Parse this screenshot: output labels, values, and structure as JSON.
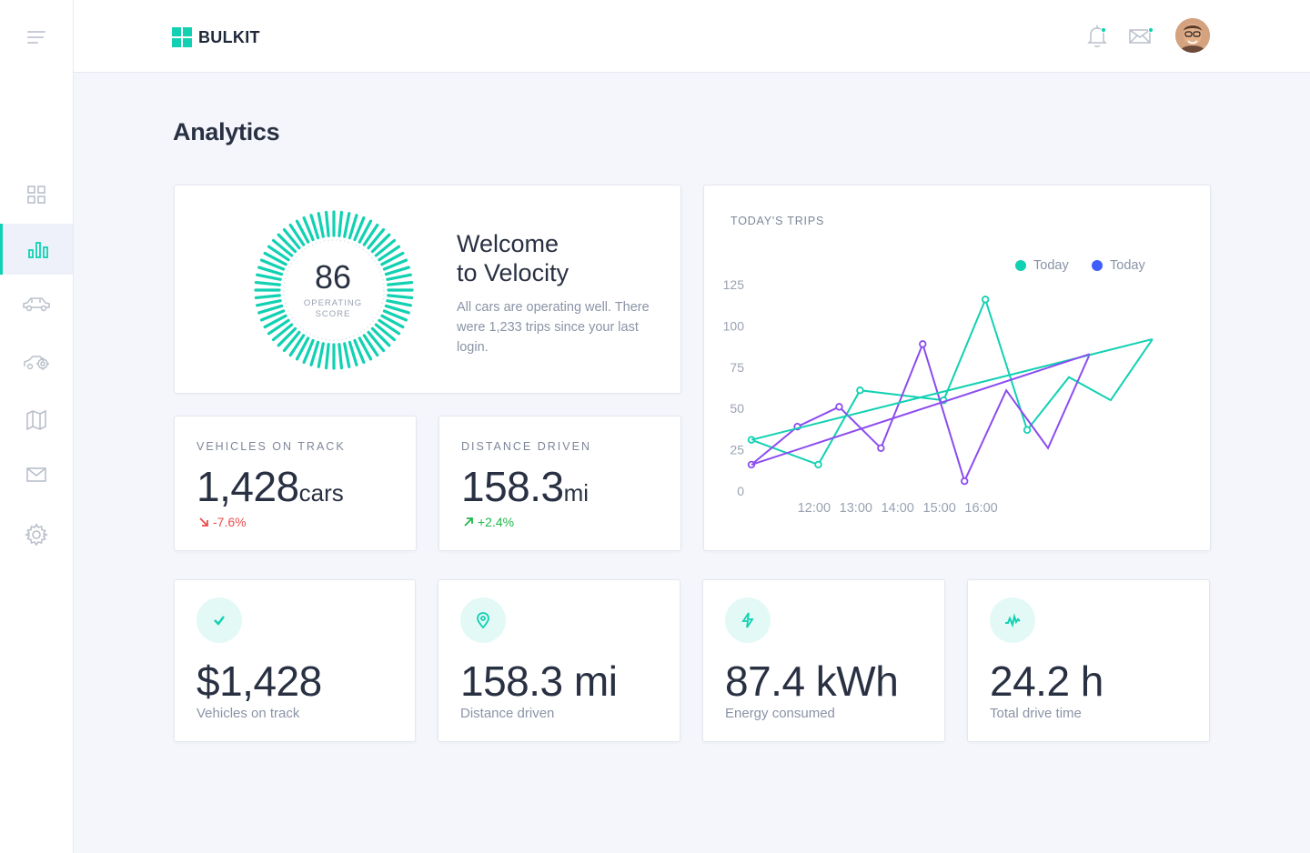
{
  "brand": {
    "name": "BULKIT",
    "accent": "#11d1b2",
    "secondary": "#7c4dff"
  },
  "sidebar": {
    "menu_icon": "hamburger-icon",
    "items": [
      {
        "id": "dashboard",
        "icon": "grid-icon",
        "active": false
      },
      {
        "id": "analytics",
        "icon": "bar-chart-icon",
        "active": true
      },
      {
        "id": "cars",
        "icon": "car-icon",
        "active": false
      },
      {
        "id": "service",
        "icon": "car-service-icon",
        "active": false
      },
      {
        "id": "map",
        "icon": "map-icon",
        "active": false
      },
      {
        "id": "messages",
        "icon": "mail-icon",
        "active": false
      },
      {
        "id": "settings",
        "icon": "gear-icon",
        "active": false
      }
    ]
  },
  "header": {
    "notifications_icon": "bell-icon",
    "messages_icon": "envelope-icon",
    "avatar": "user-avatar"
  },
  "page": {
    "title": "Analytics"
  },
  "welcome": {
    "score": "86",
    "score_label_line1": "OPERATING",
    "score_label_line2": "SCORE",
    "title_line1": "Welcome",
    "title_line2": "to Velocity",
    "text": "All cars are operating well. There were 1,233 trips since your last login."
  },
  "stats": [
    {
      "label": "VEHICLES ON TRACK",
      "value": "1,428",
      "unit": "cars",
      "trend": "-7.6%",
      "direction": "down"
    },
    {
      "label": "DISTANCE DRIVEN",
      "value": "158.3",
      "unit": "mi",
      "trend": "+2.4%",
      "direction": "up"
    }
  ],
  "trips_chart": {
    "title": "TODAY'S TRIPS",
    "legend": [
      {
        "label": "Today",
        "color": "#11d1b2"
      },
      {
        "label": "Today",
        "color": "#3f5efb"
      }
    ]
  },
  "chart_data": {
    "type": "line",
    "title": "TODAY'S TRIPS",
    "x_tick_labels": [
      "12:00",
      "13:00",
      "14:00",
      "15:00",
      "16:00"
    ],
    "y_ticks": [
      0,
      25,
      50,
      75,
      100,
      125
    ],
    "ylim": [
      0,
      125
    ],
    "x": [
      11.5,
      12.0,
      12.5,
      13.0,
      13.5,
      14.0,
      14.5,
      15.0,
      15.5,
      16.0,
      16.5
    ],
    "series": [
      {
        "name": "Today",
        "color": "#11d1b2",
        "values": [
          31,
          16,
          61,
          55,
          116,
          37,
          69,
          55,
          92
        ],
        "x": [
          11.25,
          12.05,
          12.55,
          13.55,
          14.05,
          14.55,
          15.05,
          15.55,
          16.05
        ],
        "markers": [
          true,
          true,
          true,
          true,
          true,
          true,
          false,
          false,
          false
        ]
      },
      {
        "name": "Today",
        "color": "#8b4cf0",
        "values": [
          16,
          39,
          51,
          26,
          89,
          6,
          61,
          26,
          83
        ],
        "x": [
          11.25,
          11.8,
          12.3,
          12.8,
          13.3,
          13.8,
          14.3,
          14.8,
          15.3
        ],
        "markers": [
          true,
          true,
          true,
          true,
          true,
          true,
          false,
          false,
          false
        ]
      },
      {
        "name": "trend-teal",
        "color": "#11d1b2",
        "values": [
          31,
          92
        ],
        "x": [
          11.25,
          16.05
        ],
        "markers": [
          false,
          false
        ]
      },
      {
        "name": "trend-violet",
        "color": "#8b4cf0",
        "values": [
          16,
          83
        ],
        "x": [
          11.25,
          15.3
        ],
        "markers": [
          false,
          false
        ]
      }
    ],
    "grid": false,
    "legend_position": "top-right"
  },
  "metrics": [
    {
      "icon": "check-icon",
      "value": "$1,428",
      "label": "Vehicles on track"
    },
    {
      "icon": "location-pin-icon",
      "value": "158.3 mi",
      "label": "Distance driven"
    },
    {
      "icon": "lightning-icon",
      "value": "87.4 kWh",
      "label": "Energy consumed"
    },
    {
      "icon": "activity-icon",
      "value": "24.2 h",
      "label": "Total drive time"
    }
  ]
}
